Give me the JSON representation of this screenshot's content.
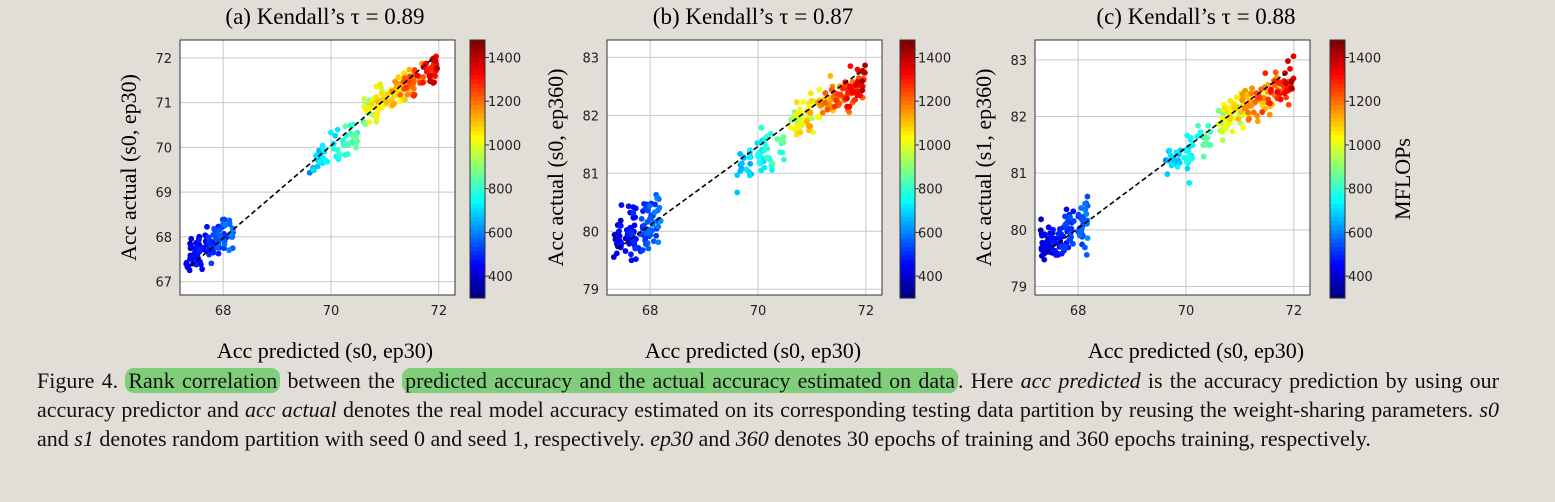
{
  "figure": {
    "caption": {
      "prefix": "Figure 4. ",
      "highlight1": "Rank correlation",
      "mid1": " between the ",
      "highlight2": "predicted accuracy and the actual accuracy estimated on data",
      "mid2": ". Here ",
      "it1": "acc predicted",
      "t1": " is the accuracy prediction by using our accuracy predictor and ",
      "it2": "acc actual",
      "t2": " denotes the real model accuracy estimated on its corresponding testing data partition by reusing the weight-sharing parameters. ",
      "it3": "s0",
      "t3": " and ",
      "it4": "s1",
      "t4": " denotes random partition with seed 0 and seed 1, respectively. ",
      "it5": "ep30",
      "t5": " and ",
      "it6": "360",
      "t6": " denotes 30 epochs of training and 360 epochs training, respectively."
    }
  },
  "colors": {
    "colormap": "jet",
    "trendline": "#000000",
    "grid": "#c8c8c8",
    "highlight": "#7fcf7a"
  },
  "chart_data": [
    {
      "type": "scatter",
      "title": "(a) Kendall’s τ = 0.89",
      "xlabel": "Acc predicted (s0, ep30)",
      "ylabel": "Acc actual (s0, ep30)",
      "xlim": [
        67.2,
        72.3
      ],
      "ylim": [
        66.7,
        72.4
      ],
      "xticks": [
        68,
        70,
        72
      ],
      "yticks": [
        67,
        68,
        69,
        70,
        71,
        72
      ],
      "colorbar": {
        "label": "",
        "range": [
          300,
          1480
        ],
        "ticks": [
          400,
          600,
          800,
          1000,
          1200,
          1400
        ]
      },
      "trend_line": {
        "x": [
          67.4,
          71.9
        ],
        "y": [
          67.35,
          72.0
        ]
      },
      "clusters": [
        {
          "x_range": [
            67.3,
            68.2
          ],
          "y_center": 67.85,
          "y_spread": 0.35,
          "mflops_range": [
            340,
            620
          ],
          "n": 110
        },
        {
          "x_range": [
            69.6,
            70.5
          ],
          "y_center": 69.95,
          "y_spread": 0.3,
          "mflops_range": [
            580,
            900
          ],
          "n": 55
        },
        {
          "x_range": [
            70.6,
            72.0
          ],
          "y_center": 71.3,
          "y_spread": 0.28,
          "mflops_range": [
            820,
            1460
          ],
          "n": 150
        }
      ],
      "grid": true,
      "legend": "none"
    },
    {
      "type": "scatter",
      "title": "(b) Kendall’s τ = 0.87",
      "xlabel": "Acc predicted (s0, ep30)",
      "ylabel": "Acc actual (s0, ep360)",
      "xlim": [
        67.2,
        72.3
      ],
      "ylim": [
        78.9,
        83.3
      ],
      "xticks": [
        68,
        70,
        72
      ],
      "yticks": [
        79,
        80,
        81,
        82,
        83
      ],
      "colorbar": {
        "label": "",
        "range": [
          300,
          1480
        ],
        "ticks": [
          400,
          600,
          800,
          1000,
          1200,
          1400
        ]
      },
      "trend_line": {
        "x": [
          67.4,
          71.9
        ],
        "y": [
          79.7,
          82.75
        ]
      },
      "clusters": [
        {
          "x_range": [
            67.3,
            68.2
          ],
          "y_center": 80.0,
          "y_spread": 0.45,
          "mflops_range": [
            340,
            620
          ],
          "n": 110
        },
        {
          "x_range": [
            69.6,
            70.5
          ],
          "y_center": 81.3,
          "y_spread": 0.35,
          "mflops_range": [
            580,
            900
          ],
          "n": 55
        },
        {
          "x_range": [
            70.6,
            72.0
          ],
          "y_center": 82.2,
          "y_spread": 0.3,
          "mflops_range": [
            820,
            1460
          ],
          "n": 150
        }
      ],
      "grid": true,
      "legend": "none"
    },
    {
      "type": "scatter",
      "title": "(c) Kendall’s τ = 0.88",
      "xlabel": "Acc predicted (s0, ep30)",
      "ylabel": "Acc actual (s1, ep360)",
      "xlim": [
        67.2,
        72.3
      ],
      "ylim": [
        78.85,
        83.35
      ],
      "xticks": [
        68,
        70,
        72
      ],
      "yticks": [
        79,
        80,
        81,
        82,
        83
      ],
      "colorbar": {
        "label": "MFLOPs",
        "range": [
          300,
          1480
        ],
        "ticks": [
          400,
          600,
          800,
          1000,
          1200,
          1400
        ]
      },
      "trend_line": {
        "x": [
          67.4,
          71.9
        ],
        "y": [
          79.6,
          82.8
        ]
      },
      "clusters": [
        {
          "x_range": [
            67.3,
            68.2
          ],
          "y_center": 79.95,
          "y_spread": 0.4,
          "mflops_range": [
            340,
            620
          ],
          "n": 110
        },
        {
          "x_range": [
            69.6,
            70.5
          ],
          "y_center": 81.35,
          "y_spread": 0.35,
          "mflops_range": [
            580,
            900
          ],
          "n": 55
        },
        {
          "x_range": [
            70.6,
            72.0
          ],
          "y_center": 82.3,
          "y_spread": 0.3,
          "mflops_range": [
            820,
            1460
          ],
          "n": 150
        }
      ],
      "grid": true,
      "legend": "none"
    }
  ]
}
